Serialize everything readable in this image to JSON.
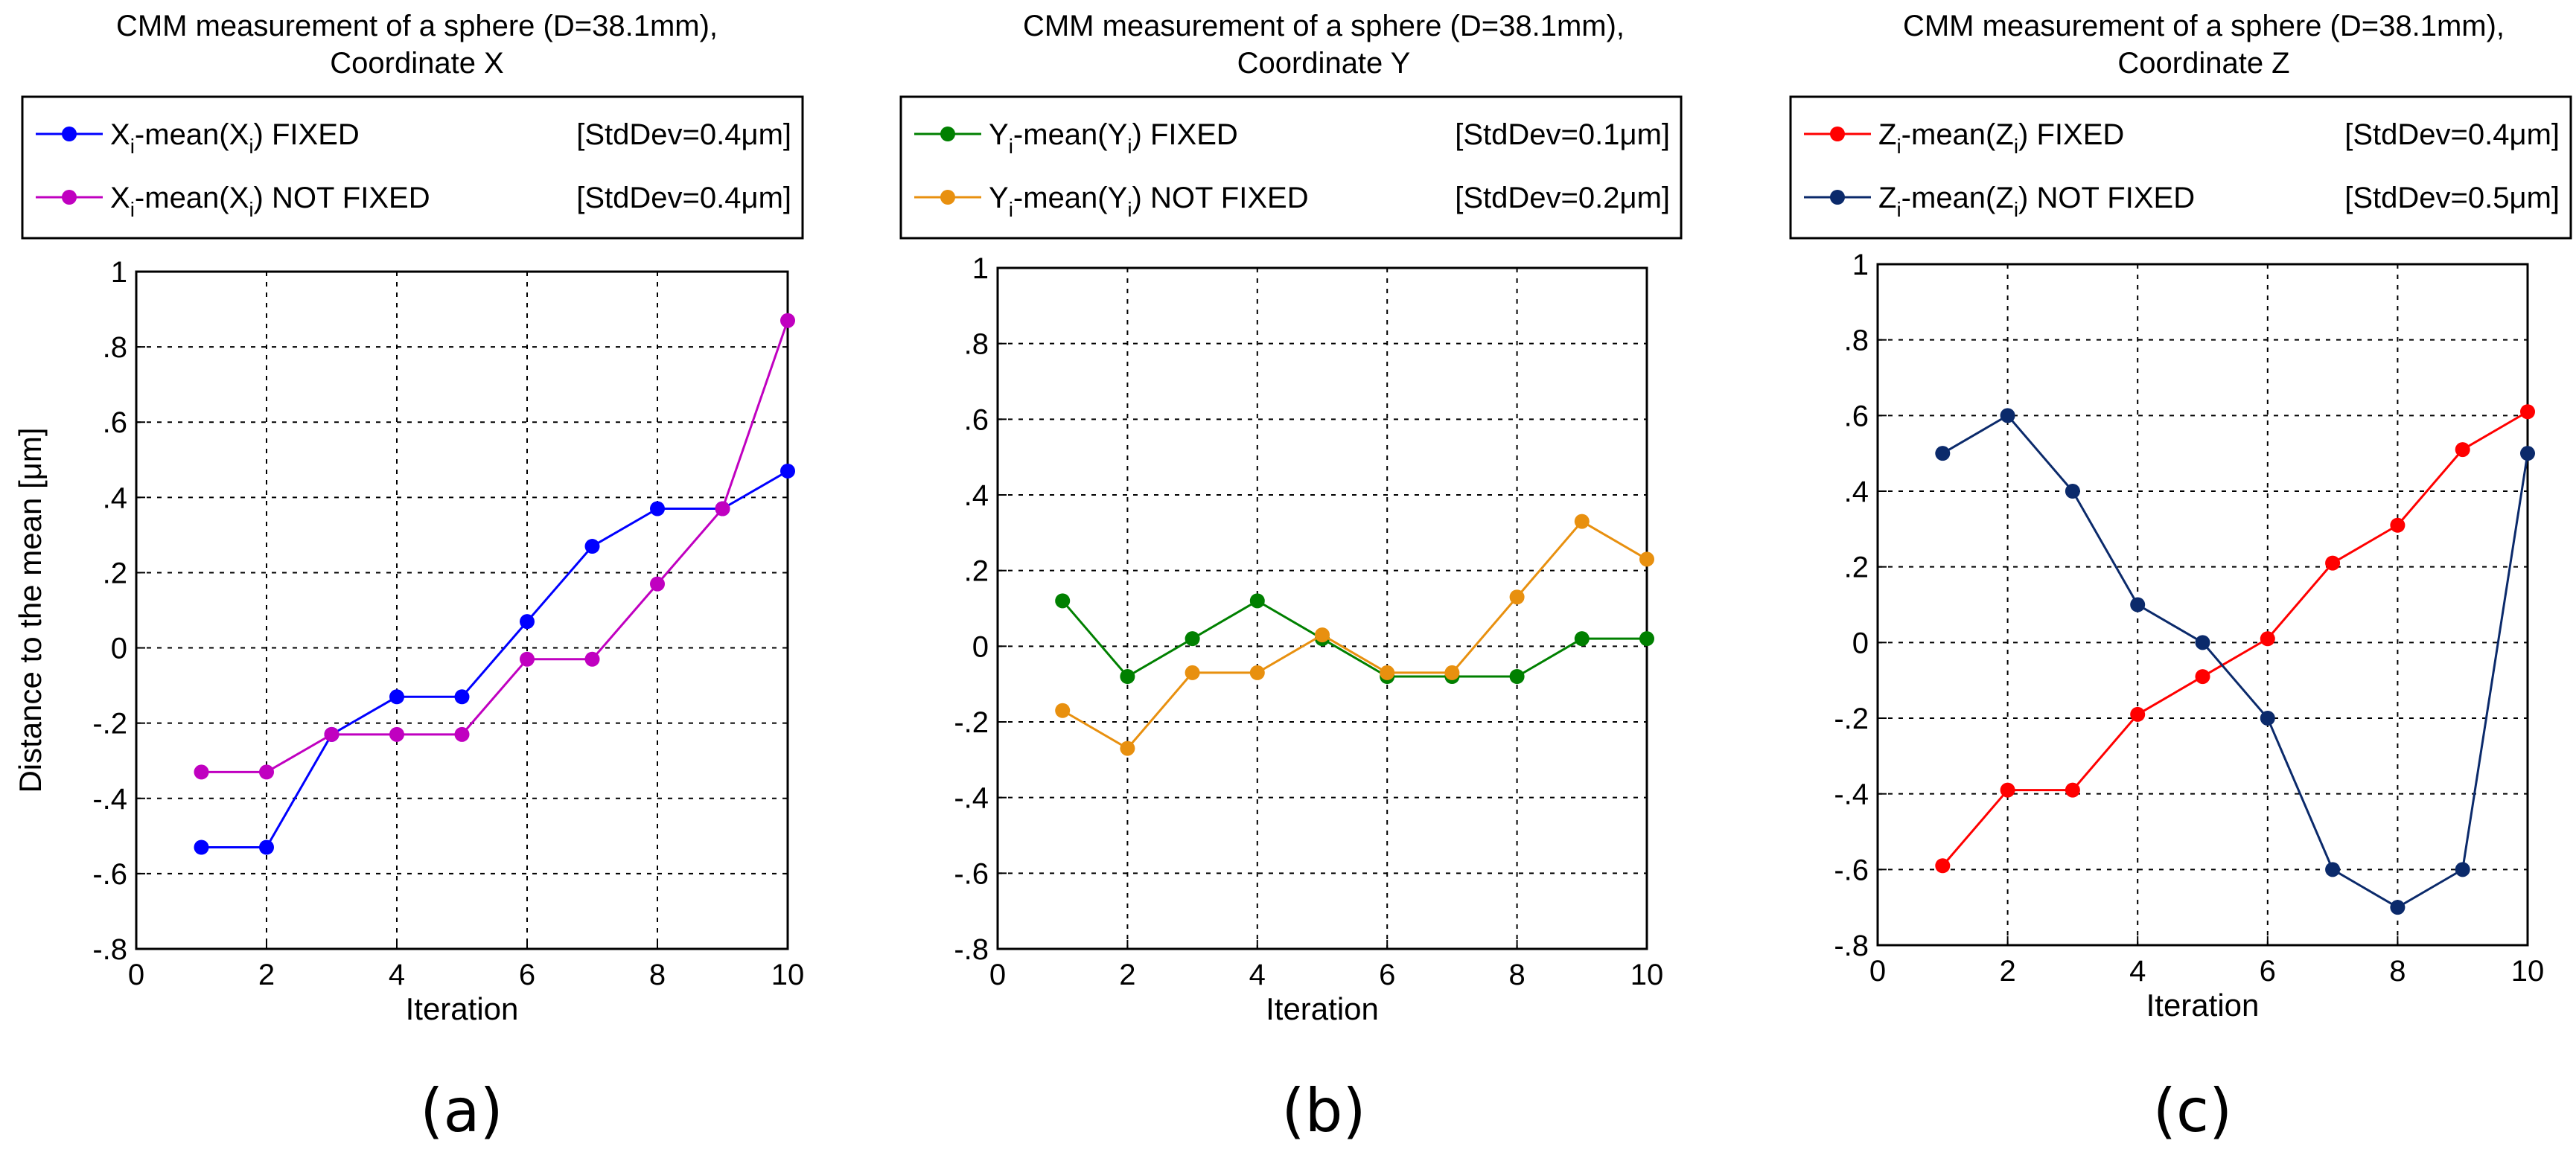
{
  "chart_data": [
    {
      "type": "line",
      "title": [
        "CMM measurement of a sphere (D=38.1mm),",
        "Coordinate X"
      ],
      "xlabel": "Iteration",
      "ylabel": "Distance to the mean [μm]",
      "xlim": [
        0,
        10
      ],
      "ylim": [
        -0.8,
        1
      ],
      "xticks": [
        0,
        2,
        4,
        6,
        8,
        10
      ],
      "yticks": [
        -0.8,
        -0.6,
        -0.4,
        -0.2,
        0,
        0.2,
        0.4,
        0.6,
        0.8,
        1
      ],
      "grid": true,
      "legend_position": "above-plot",
      "panel_label": "(a)",
      "x": [
        1,
        2,
        3,
        4,
        5,
        6,
        7,
        8,
        9,
        10
      ],
      "series": [
        {
          "name_parts": {
            "var": "X",
            "sub": "i",
            "mid": "-mean(",
            "var2": "X",
            "sub2": "i",
            "tail": ") FIXED"
          },
          "stddev": "[StdDev=0.4μm]",
          "color": "#0000ff",
          "values": [
            -0.53,
            -0.53,
            -0.23,
            -0.13,
            -0.13,
            0.07,
            0.27,
            0.37,
            0.37,
            0.47
          ]
        },
        {
          "name_parts": {
            "var": "X",
            "sub": "i",
            "mid": "-mean(",
            "var2": "X",
            "sub2": "i",
            "tail": ") NOT FIXED"
          },
          "stddev": "[StdDev=0.4μm]",
          "color": "#c000c0",
          "values": [
            -0.33,
            -0.33,
            -0.23,
            -0.23,
            -0.23,
            -0.03,
            -0.03,
            0.17,
            0.37,
            0.87
          ]
        }
      ]
    },
    {
      "type": "line",
      "title": [
        "CMM measurement of a sphere (D=38.1mm),",
        "Coordinate Y"
      ],
      "xlabel": "Iteration",
      "ylabel": "",
      "xlim": [
        0,
        10
      ],
      "ylim": [
        -0.8,
        1
      ],
      "xticks": [
        0,
        2,
        4,
        6,
        8,
        10
      ],
      "yticks": [
        -0.8,
        -0.6,
        -0.4,
        -0.2,
        0,
        0.2,
        0.4,
        0.6,
        0.8,
        1
      ],
      "grid": true,
      "legend_position": "above-plot",
      "panel_label": "(b)",
      "x": [
        1,
        2,
        3,
        4,
        5,
        6,
        7,
        8,
        9,
        10
      ],
      "series": [
        {
          "name_parts": {
            "var": "Y",
            "sub": "i",
            "mid": "-mean(",
            "var2": "Y",
            "sub2": "i",
            "tail": ") FIXED"
          },
          "stddev": "[StdDev=0.1μm]",
          "color": "#008000",
          "values": [
            0.12,
            -0.08,
            0.02,
            0.12,
            0.02,
            -0.08,
            -0.08,
            -0.08,
            0.02,
            0.02
          ]
        },
        {
          "name_parts": {
            "var": "Y",
            "sub": "i",
            "mid": "-mean(",
            "var2": "Y",
            "sub2": "i",
            "tail": ") NOT FIXED"
          },
          "stddev": "[StdDev=0.2μm]",
          "color": "#e8900f",
          "values": [
            -0.17,
            -0.27,
            -0.07,
            -0.07,
            0.03,
            -0.07,
            -0.07,
            0.13,
            0.33,
            0.23
          ]
        }
      ]
    },
    {
      "type": "line",
      "title": [
        "CMM measurement of a sphere (D=38.1mm),",
        "Coordinate Z"
      ],
      "xlabel": "Iteration",
      "ylabel": "",
      "xlim": [
        0,
        10
      ],
      "ylim": [
        -0.8,
        1
      ],
      "xticks": [
        0,
        2,
        4,
        6,
        8,
        10
      ],
      "yticks": [
        -0.8,
        -0.6,
        -0.4,
        -0.2,
        0,
        0.2,
        0.4,
        0.6,
        0.8,
        1
      ],
      "grid": true,
      "legend_position": "above-plot",
      "panel_label": "(c)",
      "x": [
        1,
        2,
        3,
        4,
        5,
        6,
        7,
        8,
        9,
        10
      ],
      "series": [
        {
          "name_parts": {
            "var": "Z",
            "sub": "i",
            "mid": "-mean(",
            "var2": "Z",
            "sub2": "i",
            "tail": ") FIXED"
          },
          "stddev": "[StdDev=0.4μm]",
          "color": "#ff0000",
          "values": [
            -0.59,
            -0.39,
            -0.39,
            -0.19,
            -0.09,
            0.01,
            0.21,
            0.31,
            0.51,
            0.61
          ]
        },
        {
          "name_parts": {
            "var": "Z",
            "sub": "i",
            "mid": "-mean(",
            "var2": "Z",
            "sub2": "i",
            "tail": ") NOT FIXED"
          },
          "stddev": "[StdDev=0.5μm]",
          "color": "#0b2a6b",
          "values": [
            0.5,
            0.6,
            0.4,
            0.1,
            0.0,
            -0.2,
            -0.6,
            -0.7,
            -0.6,
            0.5
          ]
        }
      ]
    }
  ]
}
